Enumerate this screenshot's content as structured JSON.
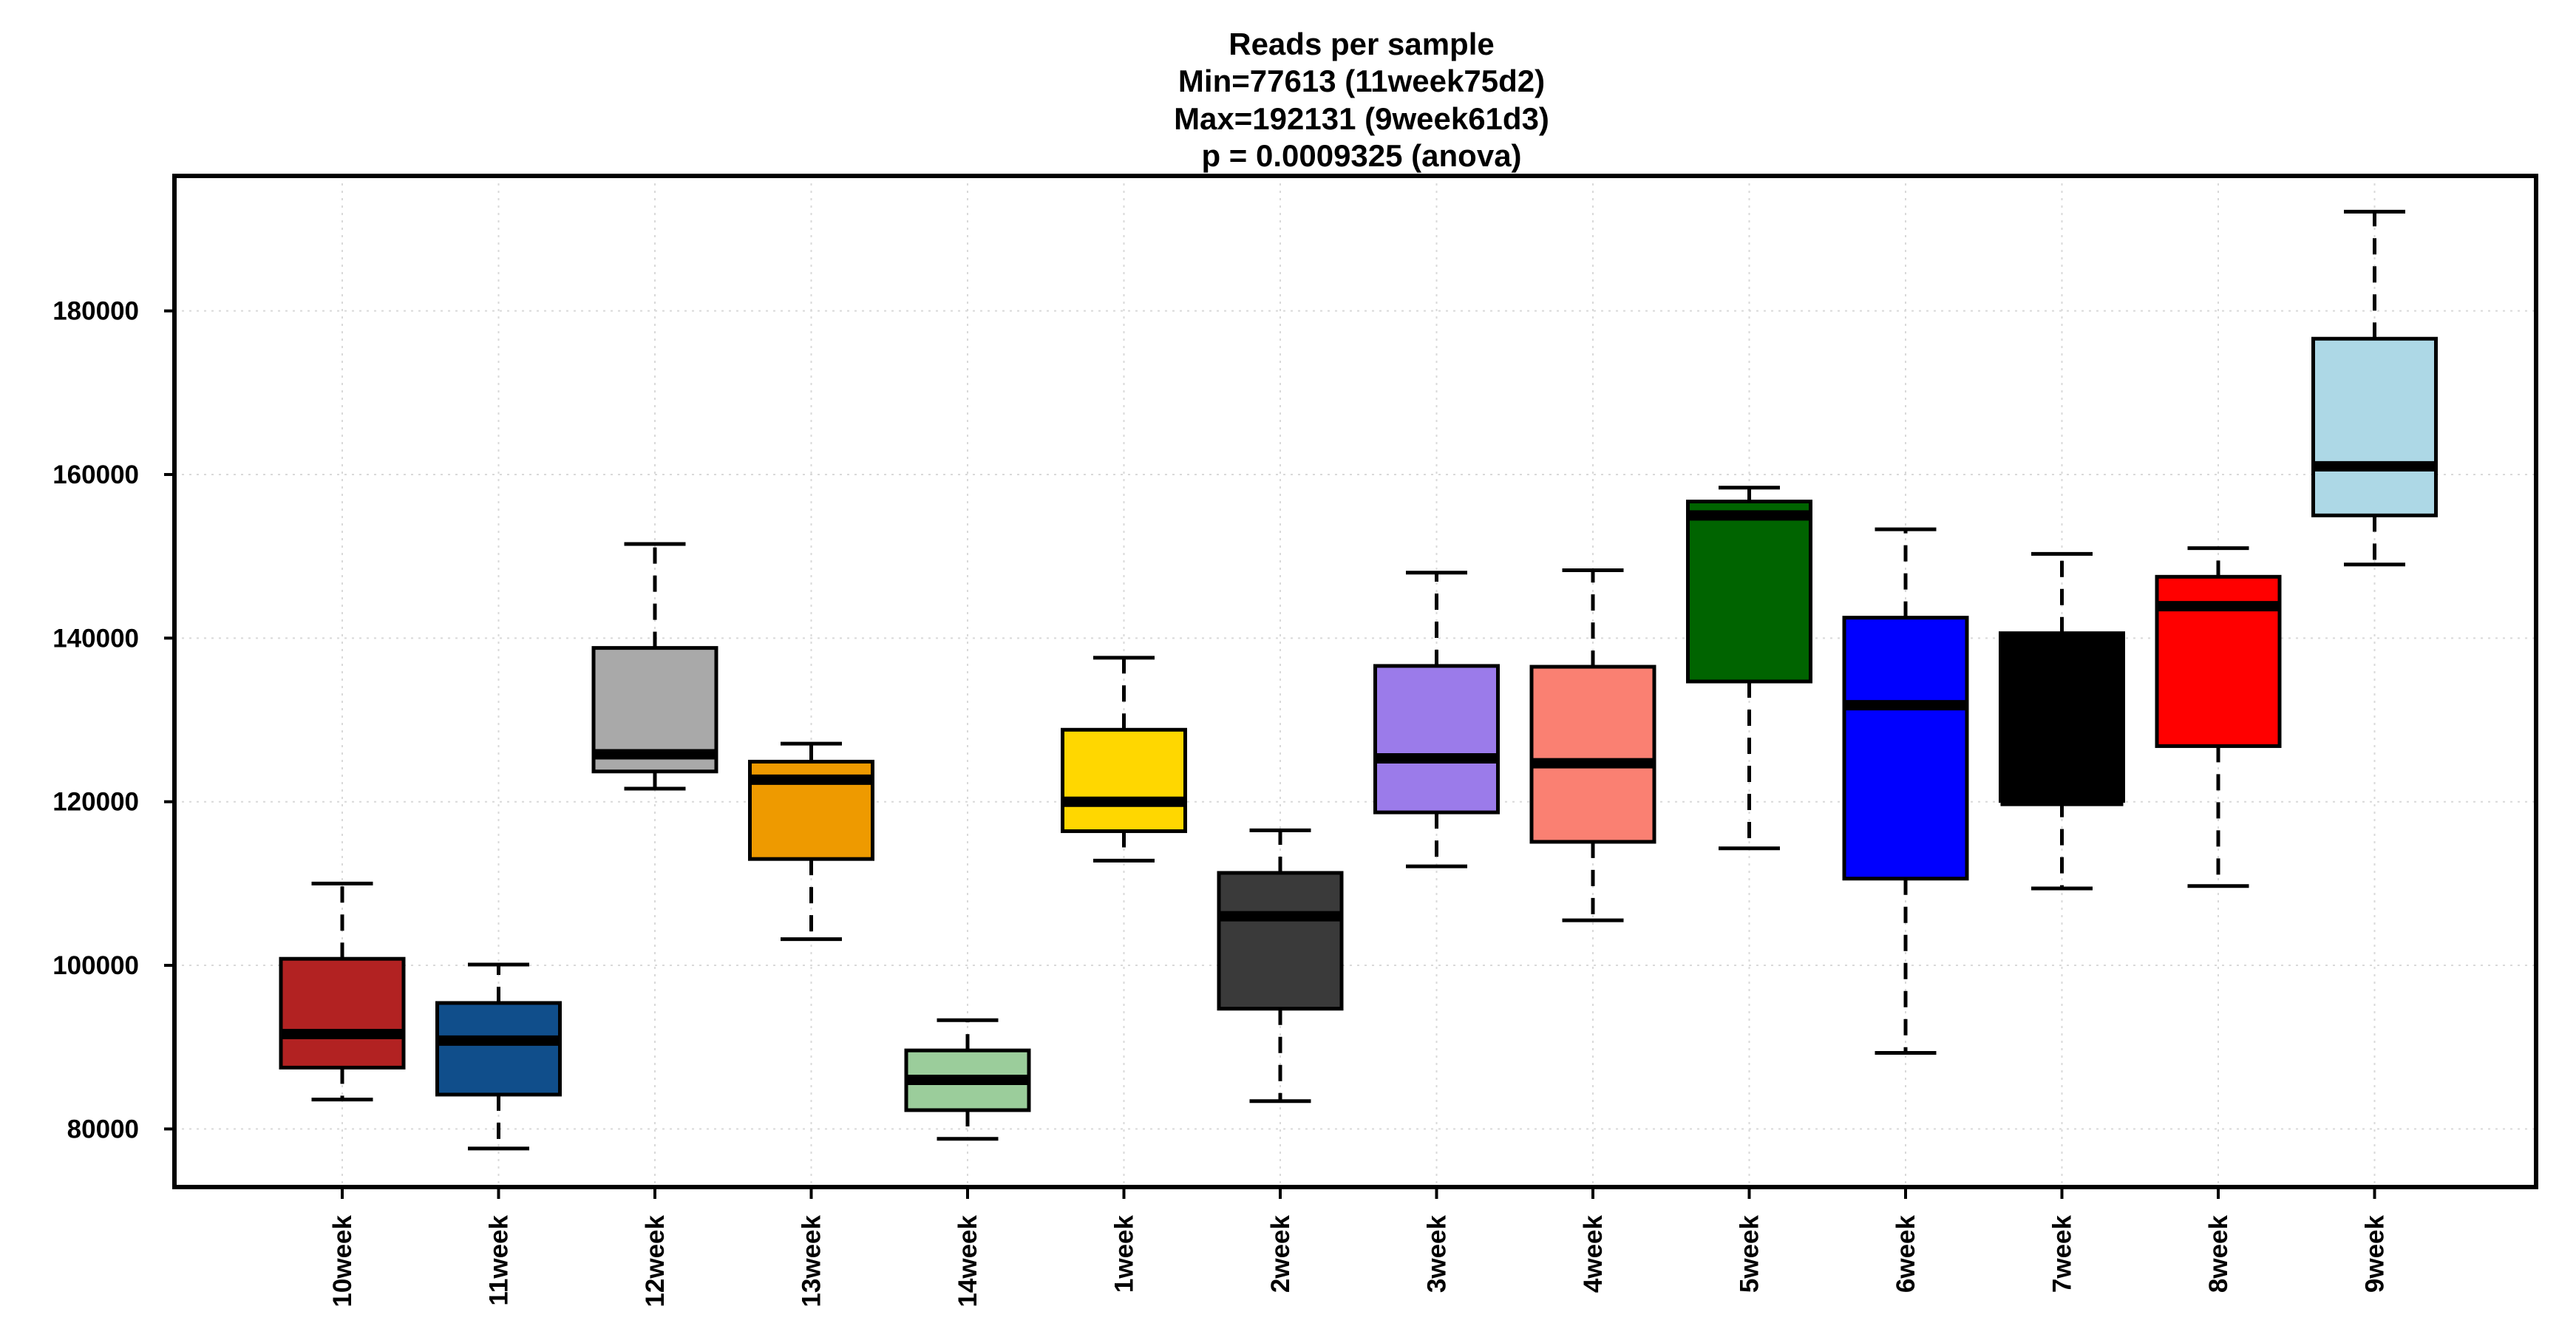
{
  "chart_data": {
    "type": "boxplot",
    "title_lines": [
      "Reads per sample",
      "Min=77613 (11week75d2)",
      "Max=192131 (9week61d3)",
      "p = 0.0009325 (anova)"
    ],
    "xlabel": "",
    "ylabel": "",
    "ylim": [
      72900,
      196500
    ],
    "yticks": [
      80000,
      100000,
      120000,
      140000,
      160000,
      180000
    ],
    "ytick_labels": [
      "80000",
      "100000",
      "120000",
      "140000",
      "160000",
      "180000"
    ],
    "grid": true,
    "categories": [
      "10week",
      "11week",
      "12week",
      "13week",
      "14week",
      "1week",
      "2week",
      "3week",
      "4week",
      "5week",
      "6week",
      "7week",
      "8week",
      "9week"
    ],
    "boxes": [
      {
        "name": "10week",
        "color": "#b22222",
        "whisker_low": 83600,
        "q1": 87500,
        "median": 91600,
        "q3": 100800,
        "whisker_high": 110000
      },
      {
        "name": "11week",
        "color": "#104e8b",
        "whisker_low": 77613,
        "q1": 84200,
        "median": 90800,
        "q3": 95400,
        "whisker_high": 100100
      },
      {
        "name": "12week",
        "color": "#a9a9a9",
        "whisker_low": 121600,
        "q1": 123700,
        "median": 125800,
        "q3": 138800,
        "whisker_high": 151500
      },
      {
        "name": "13week",
        "color": "#ee9a00",
        "whisker_low": 103200,
        "q1": 113000,
        "median": 122700,
        "q3": 124900,
        "whisker_high": 127100
      },
      {
        "name": "14week",
        "color": "#9bcd9b",
        "whisker_low": 78800,
        "q1": 82300,
        "median": 86000,
        "q3": 89600,
        "whisker_high": 93300
      },
      {
        "name": "1week",
        "color": "#ffd700",
        "whisker_low": 112800,
        "q1": 116400,
        "median": 120000,
        "q3": 128800,
        "whisker_high": 137600
      },
      {
        "name": "2week",
        "color": "#3a3a3a",
        "whisker_low": 83400,
        "q1": 94700,
        "median": 106000,
        "q3": 111300,
        "whisker_high": 116500
      },
      {
        "name": "3week",
        "color": "#9b7bea",
        "whisker_low": 112100,
        "q1": 118700,
        "median": 125300,
        "q3": 136600,
        "whisker_high": 148000
      },
      {
        "name": "4week",
        "color": "#fa8072",
        "whisker_low": 105500,
        "q1": 115100,
        "median": 124700,
        "q3": 136500,
        "whisker_high": 148300
      },
      {
        "name": "5week",
        "color": "#006400",
        "whisker_low": 114300,
        "q1": 134700,
        "median": 155000,
        "q3": 156700,
        "whisker_high": 158400
      },
      {
        "name": "6week",
        "color": "#0000ff",
        "whisker_low": 89300,
        "q1": 110600,
        "median": 131800,
        "q3": 142500,
        "whisker_high": 153300
      },
      {
        "name": "7week",
        "color": "#000000",
        "whisker_low": 109400,
        "q1": 120100,
        "median": 120100,
        "q3": 140600,
        "whisker_high": 150300
      },
      {
        "name": "8week",
        "color": "#ff0000",
        "whisker_low": 109700,
        "q1": 126800,
        "median": 143900,
        "q3": 147500,
        "whisker_high": 151000
      },
      {
        "name": "9week",
        "color": "#add8e6",
        "whisker_low": 149000,
        "q1": 155000,
        "median": 161000,
        "q3": 176600,
        "whisker_high": 192131
      }
    ]
  }
}
